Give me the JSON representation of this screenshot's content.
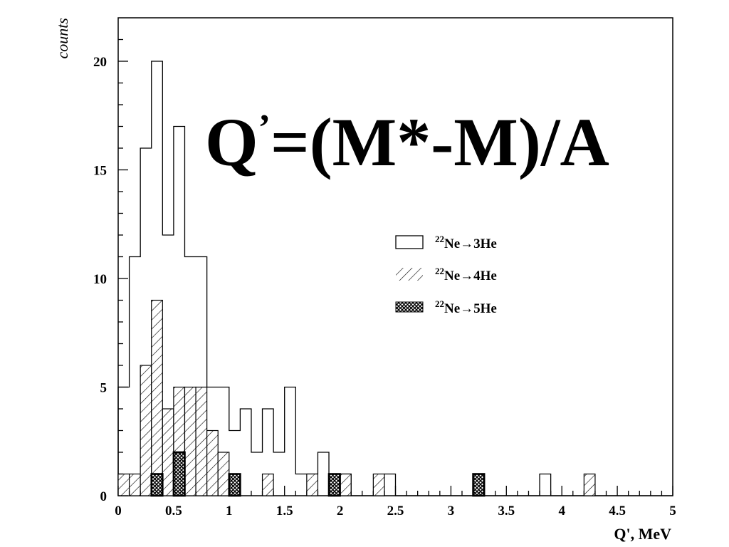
{
  "chart_data": {
    "type": "histogram",
    "title": "",
    "xlabel": "Q', MeV",
    "ylabel": "counts",
    "xlim": [
      0,
      5
    ],
    "ylim": [
      0,
      22
    ],
    "bin_width": 0.1,
    "x_ticks": [
      "0",
      "0.5",
      "1",
      "1.5",
      "2",
      "2.5",
      "3",
      "3.5",
      "4",
      "4.5",
      "5"
    ],
    "x_tick_values": [
      0,
      0.5,
      1,
      1.5,
      2,
      2.5,
      3,
      3.5,
      4,
      4.5,
      5
    ],
    "y_ticks": [
      "0",
      "5",
      "10",
      "15",
      "20"
    ],
    "y_tick_values": [
      0,
      5,
      10,
      15,
      20
    ],
    "grid": false,
    "legend_position": "upper-right",
    "annotation": {
      "main": "Q",
      "prime": "’",
      "rest": "=(M*-M)/A"
    },
    "series": [
      {
        "name": "3He",
        "legend": {
          "mass": "22",
          "text": "Ne→3He"
        },
        "style": "open",
        "values": [
          5,
          11,
          16,
          20,
          12,
          17,
          11,
          11,
          5,
          5,
          3,
          4,
          2,
          4,
          2,
          5,
          1,
          1,
          2,
          1,
          1,
          0,
          0,
          0,
          1,
          0,
          0,
          0,
          0,
          0,
          0,
          0,
          0,
          0,
          0,
          0,
          0,
          0,
          1,
          0,
          0,
          0,
          0,
          0,
          0,
          0,
          0,
          0,
          0,
          0
        ]
      },
      {
        "name": "4He",
        "legend": {
          "mass": "22",
          "text": "Ne→4He"
        },
        "style": "hatched",
        "values": [
          1,
          1,
          6,
          9,
          4,
          5,
          5,
          5,
          3,
          2,
          0,
          0,
          0,
          1,
          0,
          0,
          0,
          1,
          0,
          1,
          1,
          0,
          0,
          1,
          0,
          0,
          0,
          0,
          0,
          0,
          0,
          0,
          0,
          0,
          0,
          0,
          0,
          0,
          0,
          0,
          0,
          0,
          1,
          0,
          0,
          0,
          0,
          0,
          0,
          0
        ]
      },
      {
        "name": "5He",
        "legend": {
          "mass": "22",
          "text": "Ne→5He"
        },
        "style": "crosshatched",
        "values": [
          0,
          0,
          0,
          1,
          0,
          2,
          0,
          0,
          0,
          0,
          1,
          0,
          0,
          0,
          0,
          0,
          0,
          0,
          0,
          1,
          0,
          0,
          0,
          0,
          0,
          0,
          0,
          0,
          0,
          0,
          0,
          0,
          1,
          0,
          0,
          0,
          0,
          0,
          0,
          0,
          0,
          0,
          0,
          0,
          0,
          0,
          0,
          0,
          0,
          0
        ]
      }
    ]
  }
}
